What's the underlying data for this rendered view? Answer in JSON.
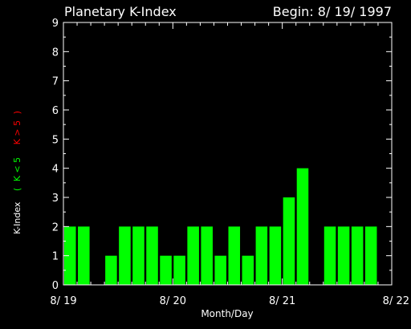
{
  "chart_data": {
    "type": "bar",
    "title": "Planetary K-Index",
    "subtitle": "Begin: 8/ 19/ 1997",
    "xlabel": "Month/Day",
    "ylabel": {
      "main": "K-Index",
      "open_paren": "(",
      "low": "K < 5",
      "high": "K > 5",
      "close_paren": ")"
    },
    "ylim": [
      0,
      9
    ],
    "yticks": [
      0,
      1,
      2,
      3,
      4,
      5,
      6,
      7,
      8,
      9
    ],
    "xlim": [
      0,
      24
    ],
    "xticks": [
      {
        "x": 0,
        "label": "8/ 19"
      },
      {
        "x": 8,
        "label": "8/ 20"
      },
      {
        "x": 16,
        "label": "8/ 21"
      },
      {
        "x": 24,
        "label": "8/ 22"
      }
    ],
    "values": [
      2,
      2,
      0,
      1,
      2,
      2,
      2,
      1,
      1,
      2,
      2,
      1,
      2,
      1,
      2,
      2,
      3,
      4,
      0,
      2,
      2,
      2,
      2,
      0
    ],
    "threshold": 5,
    "colors": {
      "background": "#000000",
      "axis": "#ffffff",
      "bar_low": "#00ff00",
      "bar_high": "#ff0000",
      "text": "#ffffff"
    }
  }
}
